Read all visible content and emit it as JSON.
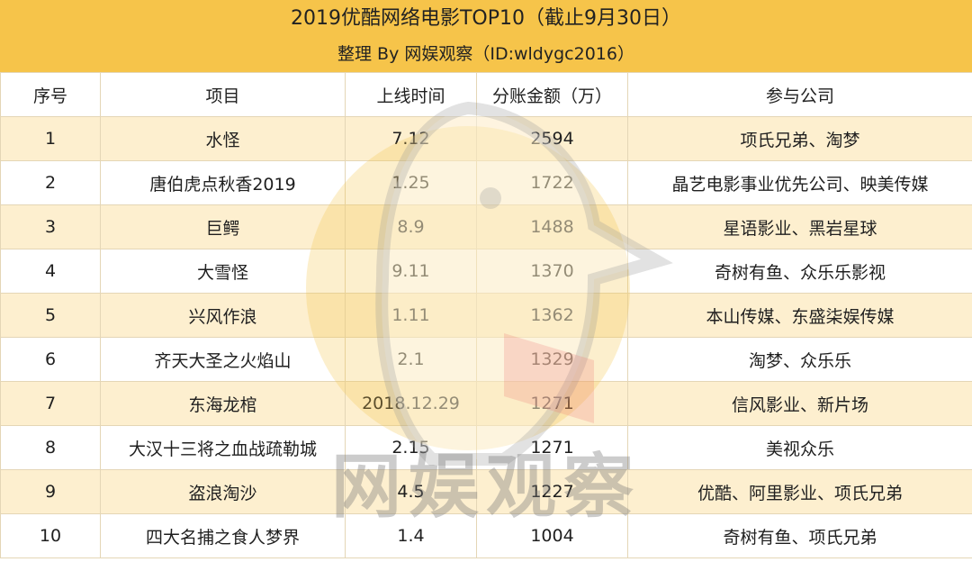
{
  "header": {
    "title": "2019优酷网络电影TOP10（截止9月30日）",
    "subtitle": "整理 By 网娱观察（ID:wldygc2016）"
  },
  "table": {
    "columns": [
      "序号",
      "项目",
      "上线时间",
      "分账金额（万）",
      "参与公司"
    ],
    "rows": [
      [
        "1",
        "水怪",
        "7.12",
        "2594",
        "项氏兄弟、淘梦"
      ],
      [
        "2",
        "唐伯虎点秋香2019",
        "1.25",
        "1722",
        "晶艺电影事业优先公司、映美传媒"
      ],
      [
        "3",
        "巨鳄",
        "8.9",
        "1488",
        "星语影业、黑岩星球"
      ],
      [
        "4",
        "大雪怪",
        "9.11",
        "1370",
        "奇树有鱼、众乐乐影视"
      ],
      [
        "5",
        "兴风作浪",
        "1.11",
        "1362",
        "本山传媒、东盛柒娱传媒"
      ],
      [
        "6",
        "齐天大圣之火焰山",
        "2.1",
        "1329",
        "淘梦、众乐乐"
      ],
      [
        "7",
        "东海龙棺",
        "2018.12.29",
        "1271",
        "信风影业、新片场"
      ],
      [
        "8",
        "大汉十三将之血战疏勒城",
        "2.15",
        "1271",
        "美视众乐"
      ],
      [
        "9",
        "盗浪淘沙",
        "4.5",
        "1227",
        "优酷、阿里影业、项氏兄弟"
      ],
      [
        "10",
        "四大名捕之食人梦界",
        "1.4",
        "1004",
        "奇树有鱼、项氏兄弟"
      ]
    ]
  },
  "watermark": {
    "text": "网娱观察",
    "icon": "penguin-logo-icon"
  },
  "colors": {
    "header_bg": "#f6c44a",
    "row_alt_bg": "#fcecc5",
    "border": "#e4d6b6"
  }
}
